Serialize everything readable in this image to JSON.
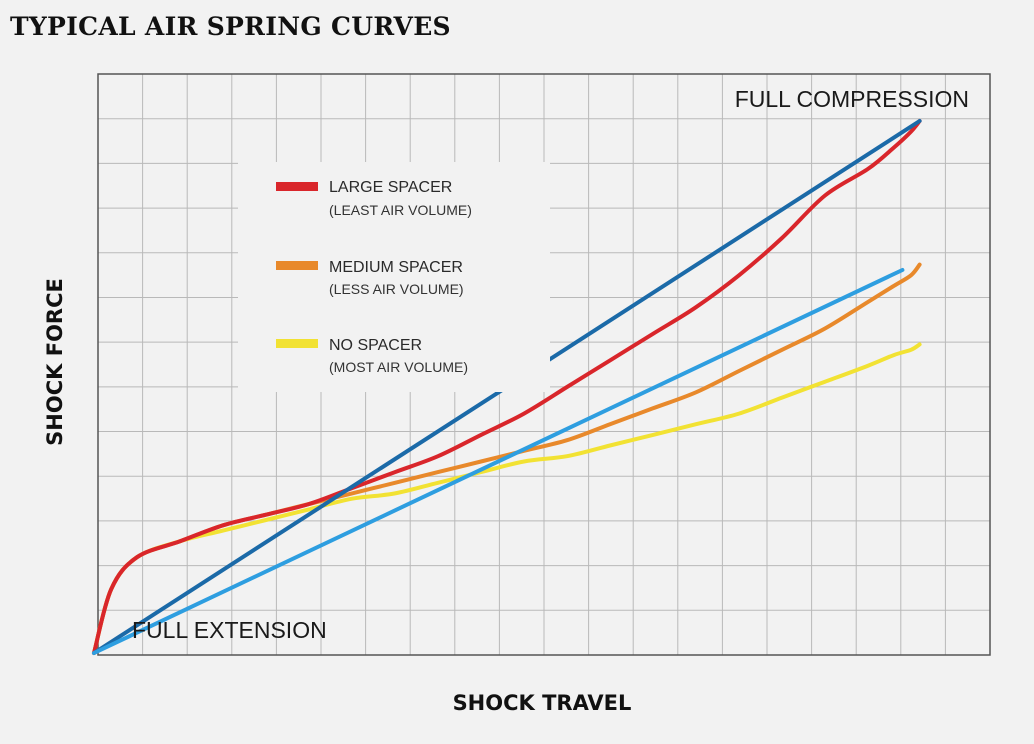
{
  "chart_data": {
    "type": "line",
    "title": "TYPICAL AIR SPRING CURVES",
    "xlabel": "SHOCK TRAVEL",
    "ylabel": "SHOCK FORCE",
    "xlim": [
      0,
      100
    ],
    "ylim": [
      0,
      100
    ],
    "grid": true,
    "legend_position": "top-left",
    "annotations": {
      "full_compression": "FULL COMPRESSION",
      "full_extension": "FULL EXTENSION"
    },
    "series": [
      {
        "name": "LARGE SPACER",
        "subtitle": "(LEAST AIR VOLUME)",
        "color": "#d9262b",
        "x": [
          0,
          2,
          5,
          10,
          15,
          20,
          25,
          30,
          35,
          40,
          45,
          50,
          55,
          60,
          65,
          70,
          75,
          80,
          85,
          90,
          93,
          95,
          96
        ],
        "y": [
          0,
          12,
          18,
          21,
          24,
          26,
          28,
          31,
          34,
          37,
          41,
          45,
          50,
          55,
          60,
          65,
          71,
          78,
          86,
          91,
          95,
          98,
          100
        ]
      },
      {
        "name": "MEDIUM SPACER",
        "subtitle": "(LESS AIR VOLUME)",
        "color": "#e8892b",
        "x": [
          0,
          2,
          5,
          10,
          15,
          20,
          25,
          30,
          35,
          40,
          45,
          50,
          55,
          60,
          65,
          70,
          75,
          80,
          85,
          90,
          93,
          95,
          96
        ],
        "y": [
          0,
          12,
          18,
          21,
          24,
          26,
          28,
          30,
          32,
          34,
          36,
          38,
          40,
          43,
          46,
          49,
          53,
          57,
          61,
          66,
          69,
          71,
          73
        ]
      },
      {
        "name": "NO SPACER",
        "subtitle": "(MOST AIR VOLUME)",
        "color": "#f2e233",
        "x": [
          0,
          2,
          5,
          10,
          15,
          20,
          25,
          30,
          35,
          40,
          45,
          50,
          55,
          60,
          65,
          70,
          75,
          80,
          85,
          90,
          93,
          95,
          96
        ],
        "y": [
          0,
          12,
          18,
          21,
          23,
          25,
          27,
          29,
          30,
          32,
          34,
          36,
          37,
          39,
          41,
          43,
          45,
          48,
          51,
          54,
          56,
          57,
          58
        ]
      },
      {
        "color": "#1b6aa8",
        "x": [
          0,
          96
        ],
        "y": [
          0,
          100
        ]
      },
      {
        "color": "#2e9ee0",
        "x": [
          0,
          94
        ],
        "y": [
          0,
          72
        ]
      }
    ]
  }
}
